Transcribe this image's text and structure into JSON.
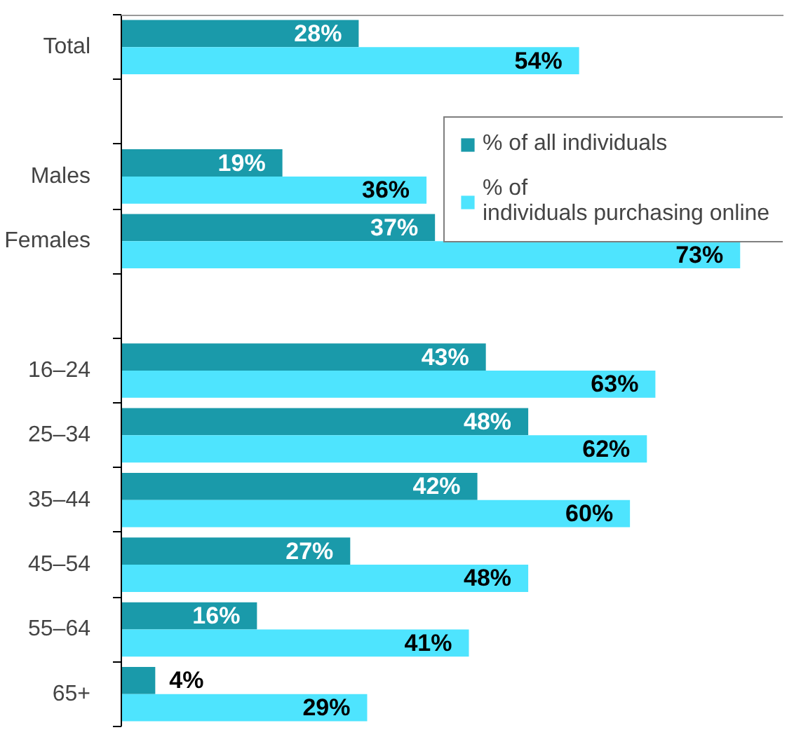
{
  "chart_data": {
    "type": "bar",
    "orientation": "horizontal",
    "categories": [
      "Total",
      null,
      "Males",
      "Females",
      null,
      "16–24",
      "25–34",
      "35–44",
      "45–54",
      "55–64",
      "65+"
    ],
    "series": [
      {
        "name": "% of all individuals",
        "color": "#1a9aaa",
        "values": [
          28,
          null,
          19,
          37,
          null,
          43,
          48,
          42,
          27,
          16,
          4
        ],
        "value_labels": [
          "28%",
          null,
          "19%",
          "37%",
          null,
          "43%",
          "48%",
          "42%",
          "27%",
          "16%",
          "4%"
        ]
      },
      {
        "name": "% of individuals purchasing online",
        "color": "#4ee4fe",
        "values": [
          54,
          null,
          36,
          73,
          null,
          63,
          62,
          60,
          48,
          41,
          29
        ],
        "value_labels": [
          "54%",
          null,
          "36%",
          "73%",
          null,
          "63%",
          "62%",
          "60%",
          "48%",
          "41%",
          "29%"
        ]
      }
    ],
    "legend": "top right",
    "grid": false
  }
}
